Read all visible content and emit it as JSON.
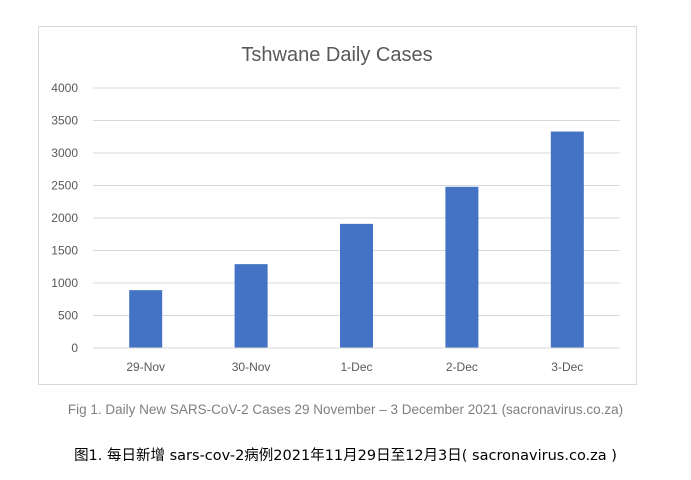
{
  "chart_data": {
    "type": "bar",
    "title": "Tshwane Daily Cases",
    "categories": [
      "29-Nov",
      "30-Nov",
      "1-Dec",
      "2-Dec",
      "3-Dec"
    ],
    "values": [
      890,
      1290,
      1910,
      2480,
      3330
    ],
    "ylim": [
      0,
      4000
    ],
    "yticks": [
      0,
      500,
      1000,
      1500,
      2000,
      2500,
      3000,
      3500,
      4000
    ],
    "grid": true,
    "legend": "none",
    "colors": {
      "bar": "#4472c4",
      "grid": "#d9d9d9",
      "tick_text": "#595959",
      "title_text": "#595959"
    }
  },
  "captions": {
    "english": "Fig 1. Daily New SARS-CoV-2 Cases 29 November – 3 December 2021 (sacronavirus.co.za)",
    "chinese": "图1. 每日新增 sars-cov-2病例2021年11月29日至12月3日( sacronavirus.co.za )"
  }
}
